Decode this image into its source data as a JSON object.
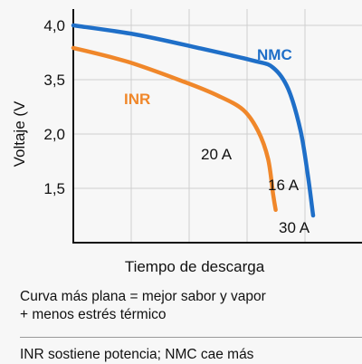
{
  "chart_data": {
    "type": "line",
    "title": "",
    "xlabel": "Tiempo de descarga",
    "ylabel": "Voltaje (V",
    "y_ticks": [
      "4,0",
      "3,5",
      "2,0",
      "1,5"
    ],
    "grid": true,
    "legend": "none",
    "series": [
      {
        "name": "NMC",
        "color": "#1f6fc8",
        "points": [
          [
            0,
            4.0
          ],
          [
            0.25,
            3.87
          ],
          [
            0.5,
            3.68
          ],
          [
            0.72,
            3.5
          ],
          [
            0.8,
            3.4
          ],
          [
            0.86,
            3.1
          ],
          [
            0.91,
            2.5
          ],
          [
            0.94,
            1.85
          ],
          [
            0.96,
            1.3
          ]
        ]
      },
      {
        "name": "INR",
        "color": "#f0872a",
        "points": [
          [
            0,
            3.68
          ],
          [
            0.22,
            3.48
          ],
          [
            0.45,
            3.19
          ],
          [
            0.58,
            3.0
          ],
          [
            0.68,
            2.8
          ],
          [
            0.74,
            2.5
          ],
          [
            0.78,
            2.1
          ],
          [
            0.8,
            1.6
          ],
          [
            0.81,
            1.38
          ]
        ]
      }
    ],
    "annotations": {
      "nmc_label": "NMC",
      "inr_label": "INR",
      "current_20a": "20 A",
      "current_16a": "16 A",
      "current_30a": "30 A"
    }
  },
  "captions": {
    "line1": "Curva más plana = mejor sabor y vapor",
    "line2": "+ menos estrés térmico",
    "line3": "INR sostiene potencia; NMC cae más"
  }
}
